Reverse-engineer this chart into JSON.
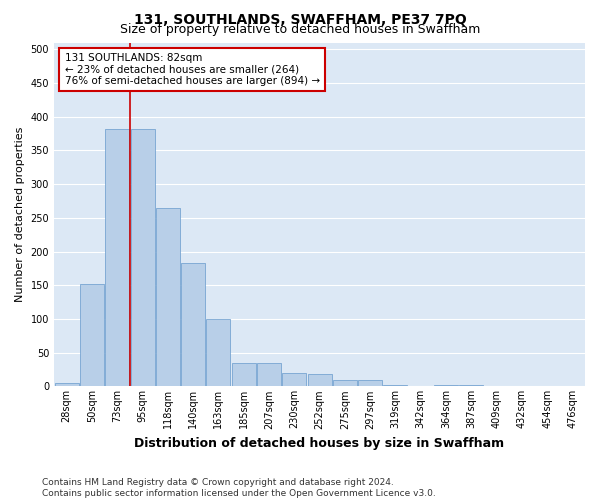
{
  "title": "131, SOUTHLANDS, SWAFFHAM, PE37 7PQ",
  "subtitle": "Size of property relative to detached houses in Swaffham",
  "xlabel": "Distribution of detached houses by size in Swaffham",
  "ylabel": "Number of detached properties",
  "categories": [
    "28sqm",
    "50sqm",
    "73sqm",
    "95sqm",
    "118sqm",
    "140sqm",
    "163sqm",
    "185sqm",
    "207sqm",
    "230sqm",
    "252sqm",
    "275sqm",
    "297sqm",
    "319sqm",
    "342sqm",
    "364sqm",
    "387sqm",
    "409sqm",
    "432sqm",
    "454sqm",
    "476sqm"
  ],
  "values": [
    5,
    152,
    382,
    382,
    265,
    183,
    100,
    35,
    35,
    20,
    18,
    10,
    10,
    2,
    0,
    2,
    2,
    0,
    0,
    0,
    0
  ],
  "bar_color": "#b8cfe8",
  "bar_edge_color": "#6699cc",
  "vline_x_index": 2.5,
  "vline_color": "#cc0000",
  "annotation_text": "131 SOUTHLANDS: 82sqm\n← 23% of detached houses are smaller (264)\n76% of semi-detached houses are larger (894) →",
  "annotation_box_color": "#ffffff",
  "annotation_box_edge": "#cc0000",
  "ylim": [
    0,
    510
  ],
  "yticks": [
    0,
    50,
    100,
    150,
    200,
    250,
    300,
    350,
    400,
    450,
    500
  ],
  "footer": "Contains HM Land Registry data © Crown copyright and database right 2024.\nContains public sector information licensed under the Open Government Licence v3.0.",
  "plot_bg_color": "#dce8f5",
  "grid_color": "#ffffff",
  "title_fontsize": 10,
  "subtitle_fontsize": 9,
  "axis_label_fontsize": 8,
  "tick_fontsize": 7,
  "annotation_fontsize": 7.5,
  "footer_fontsize": 6.5
}
